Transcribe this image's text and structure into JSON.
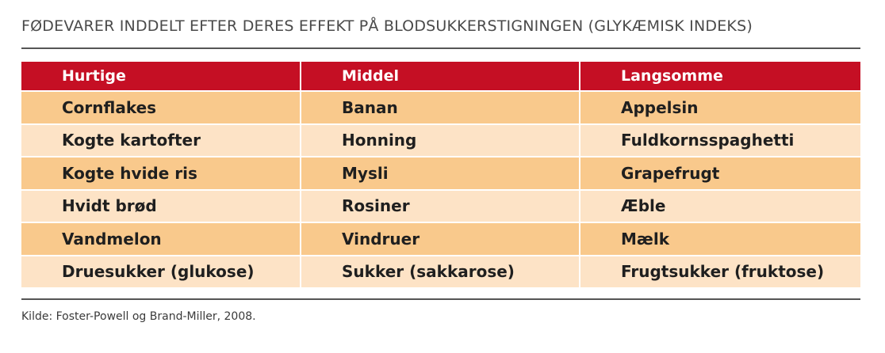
{
  "title": "FØDEVARER INDDELT EFTER DERES EFFEKT PÅ BLODSUKKERSTIGNINGEN (GLYKÆMISK INDEKS)",
  "table": {
    "headers": [
      "Hurtige",
      "Middel",
      "Langsomme"
    ],
    "rows": [
      [
        "Cornflakes",
        "Banan",
        "Appelsin"
      ],
      [
        "Kogte kartofter",
        "Honning",
        "Fuldkornsspaghetti"
      ],
      [
        "Kogte hvide ris",
        "Mysli",
        "Grapefrugt"
      ],
      [
        "Hvidt brød",
        "Rosiner",
        "Æble"
      ],
      [
        "Vandmelon",
        "Vindruer",
        "Mælk"
      ],
      [
        "Druesukker (glukose)",
        "Sukker (sakkarose)",
        "Frugtsukker (fruktose)"
      ]
    ]
  },
  "source": "Kilde: Foster-Powell og Brand-Miller, 2008.",
  "colors": {
    "header_bg": "#c50f24",
    "row_dark": "#f9c98c",
    "row_light": "#fde3c6"
  }
}
